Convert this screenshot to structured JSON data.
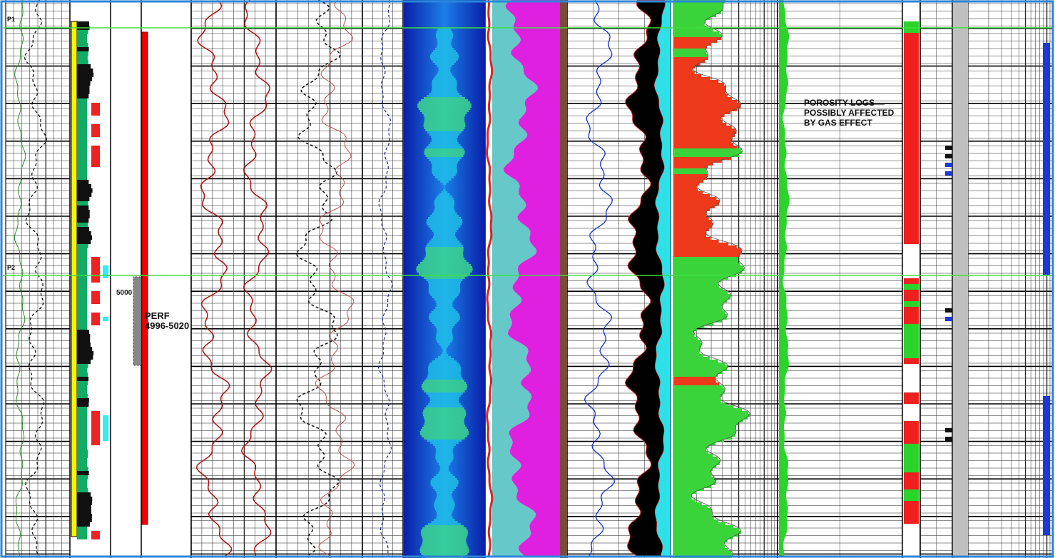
{
  "markers": {
    "top": "P1",
    "bottom": "P2"
  },
  "depth_label": "5000",
  "perforation": {
    "title": "PERF",
    "interval": "4996-5020"
  },
  "annotation": {
    "lines": [
      "POROSITY LOGS",
      "POSSIBLY AFFECTED",
      "BY GAS EFFECT"
    ]
  }
}
